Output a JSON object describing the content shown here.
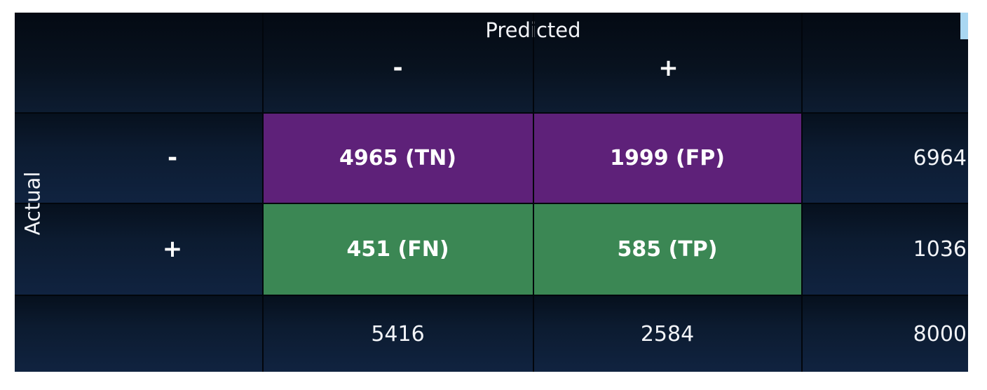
{
  "predicted_label": "Predicted",
  "actual_label": "Actual",
  "col_headers": [
    "-",
    "+"
  ],
  "row_headers": [
    "-",
    "+"
  ],
  "cells": {
    "tn": "4965 (TN)",
    "fp": "1999 (FP)",
    "fn": "451 (FN)",
    "tp": "585 (TP)"
  },
  "row_totals": [
    "6964",
    "1036"
  ],
  "col_totals": [
    "5416",
    "2584"
  ],
  "grand_total": "8000",
  "colors": {
    "background": "#0b1a2e",
    "negative_row": "#5e2179",
    "positive_row": "#3b8754",
    "accent": "#a9d7f2"
  }
}
